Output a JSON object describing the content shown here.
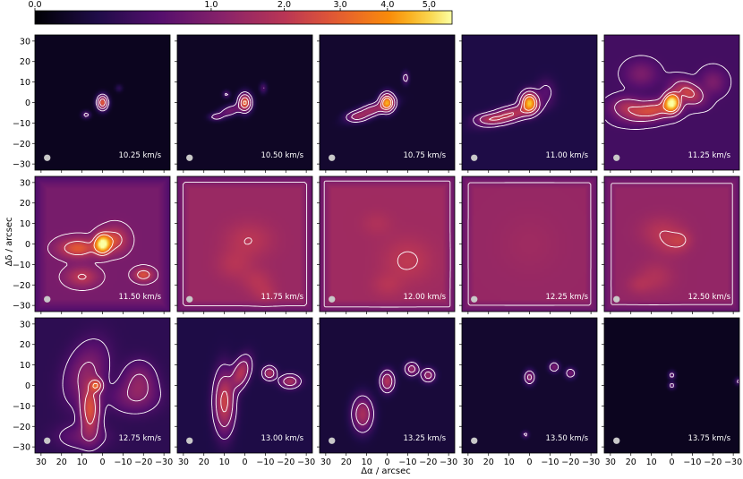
{
  "chart_data": {
    "type": "heatmap",
    "title": "",
    "xlabel": "Δα / arcsec",
    "ylabel": "Δδ / arcsec",
    "xlim": [
      33,
      -33
    ],
    "ylim": [
      -33,
      33
    ],
    "x_ticks": [
      30,
      20,
      10,
      0,
      -10,
      -20,
      -30
    ],
    "y_ticks": [
      30,
      20,
      10,
      0,
      -10,
      -20,
      -30
    ],
    "x_tick_labels": [
      "30",
      "20",
      "10",
      "0",
      "−10",
      "−20",
      "−30"
    ],
    "y_tick_labels": [
      "30",
      "20",
      "10",
      "0",
      "−10",
      "−20",
      "−30"
    ],
    "colormap": "inferno-like",
    "colorbar": {
      "position": "top",
      "scale": "square-root",
      "range": [
        0,
        5.6
      ],
      "ticks": [
        0.0,
        1.0,
        2.0,
        3.0,
        4.0,
        5.0
      ],
      "tick_labels": [
        "0.0",
        "1.0",
        "2.0",
        "3.0",
        "4.0",
        "5.0"
      ]
    },
    "beam": {
      "x": 27,
      "y": -27,
      "radius_arcsec": 1.6,
      "color": "#c8c8c8"
    },
    "grid": false,
    "channels": [
      {
        "label": "10.25 km/s",
        "velocity": 10.25,
        "background": 0.02,
        "blobs": [
          {
            "x": 0,
            "y": 0,
            "sx": 1.5,
            "sy": 2,
            "peak": 3.0,
            "rot": 0
          },
          {
            "x": 8,
            "y": -6,
            "sx": 1.2,
            "sy": 1,
            "peak": 0.6,
            "rot": 0
          },
          {
            "x": -8,
            "y": 7,
            "sx": 1,
            "sy": 1,
            "peak": 0.2,
            "rot": 0
          }
        ]
      },
      {
        "label": "10.50 km/s",
        "velocity": 10.5,
        "background": 0.03,
        "blobs": [
          {
            "x": 0,
            "y": 0,
            "sx": 1.8,
            "sy": 2.5,
            "peak": 3.2,
            "rot": 0
          },
          {
            "x": 7,
            "y": -4,
            "sx": 4,
            "sy": 1.5,
            "peak": 0.8,
            "rot": -20
          },
          {
            "x": 14,
            "y": -7,
            "sx": 2,
            "sy": 1,
            "peak": 0.6,
            "rot": 0
          },
          {
            "x": 9,
            "y": 4,
            "sx": 1,
            "sy": 1,
            "peak": 0.5,
            "rot": 0
          },
          {
            "x": -9,
            "y": 7,
            "sx": 1,
            "sy": 1.5,
            "peak": 0.4,
            "rot": 0
          }
        ]
      },
      {
        "label": "10.75 km/s",
        "velocity": 10.75,
        "background": 0.05,
        "blobs": [
          {
            "x": 0,
            "y": 0,
            "sx": 2,
            "sy": 2.5,
            "peak": 4.2,
            "rot": 0
          },
          {
            "x": 8,
            "y": -4,
            "sx": 6,
            "sy": 1.8,
            "peak": 1.5,
            "rot": -20
          },
          {
            "x": 15,
            "y": -7,
            "sx": 3,
            "sy": 1.5,
            "peak": 0.8,
            "rot": 0
          },
          {
            "x": -9,
            "y": 12,
            "sx": 1,
            "sy": 1.8,
            "peak": 0.6,
            "rot": 0
          }
        ]
      },
      {
        "label": "11.00 km/s",
        "velocity": 11.0,
        "background": 0.12,
        "blobs": [
          {
            "x": 0,
            "y": 0,
            "sx": 2.5,
            "sy": 3,
            "peak": 4.5,
            "rot": 0
          },
          {
            "x": 10,
            "y": -6,
            "sx": 8,
            "sy": 2.2,
            "peak": 2.0,
            "rot": -15
          },
          {
            "x": 20,
            "y": -8,
            "sx": 4,
            "sy": 1.5,
            "peak": 1.0,
            "rot": 0
          },
          {
            "x": -8,
            "y": 5,
            "sx": 3,
            "sy": 4,
            "peak": 0.4,
            "rot": 0
          }
        ]
      },
      {
        "label": "11.25 km/s",
        "velocity": 11.25,
        "background": 0.35,
        "blobs": [
          {
            "x": 0,
            "y": 0,
            "sx": 2.5,
            "sy": 3,
            "peak": 5.3,
            "rot": 0
          },
          {
            "x": -8,
            "y": 5,
            "sx": 5,
            "sy": 3,
            "peak": 2.0,
            "rot": 30
          },
          {
            "x": 10,
            "y": -4,
            "sx": 8,
            "sy": 3,
            "peak": 2.2,
            "rot": -10
          },
          {
            "x": 22,
            "y": -2,
            "sx": 5,
            "sy": 3,
            "peak": 1.2,
            "rot": 0
          },
          {
            "x": 15,
            "y": 14,
            "sx": 5,
            "sy": 4,
            "peak": 0.6,
            "rot": 0
          },
          {
            "x": -20,
            "y": 10,
            "sx": 4,
            "sy": 4,
            "peak": 0.6,
            "rot": 0
          }
        ]
      },
      {
        "label": "11.50 km/s",
        "velocity": 11.5,
        "background": 0.9,
        "blobs": [
          {
            "x": 0,
            "y": 0,
            "sx": 2.5,
            "sy": 3,
            "peak": 5.0,
            "rot": 0
          },
          {
            "x": 12,
            "y": -2,
            "sx": 6,
            "sy": 3,
            "peak": 2.0,
            "rot": 0
          },
          {
            "x": -6,
            "y": 2,
            "sx": 4,
            "sy": 4,
            "peak": 1.6,
            "rot": 0
          },
          {
            "x": -20,
            "y": -15,
            "sx": 3,
            "sy": 2,
            "peak": 1.8,
            "rot": 0
          },
          {
            "x": 10,
            "y": -16,
            "sx": 5,
            "sy": 3,
            "peak": 1.2,
            "rot": 0
          }
        ]
      },
      {
        "label": "11.75 km/s",
        "velocity": 11.75,
        "background": 1.4,
        "blobs": [
          {
            "x": -2,
            "y": 2,
            "sx": 8,
            "sy": 6,
            "peak": 0.6,
            "rot": 0
          },
          {
            "x": 5,
            "y": -10,
            "sx": 6,
            "sy": 5,
            "peak": 0.5,
            "rot": 0
          },
          {
            "x": -6,
            "y": -18,
            "sx": 5,
            "sy": 4,
            "peak": 0.5,
            "rot": 0
          },
          {
            "x": -10,
            "y": -24,
            "sx": 4,
            "sy": 3,
            "peak": 0.4,
            "rot": 0
          }
        ]
      },
      {
        "label": "12.00 km/s",
        "velocity": 12.0,
        "background": 1.5,
        "blobs": [
          {
            "x": -10,
            "y": -8,
            "sx": 8,
            "sy": 7,
            "peak": 0.6,
            "rot": 0
          },
          {
            "x": 0,
            "y": -20,
            "sx": 5,
            "sy": 4,
            "peak": 0.4,
            "rot": 0
          },
          {
            "x": 5,
            "y": 10,
            "sx": 5,
            "sy": 4,
            "peak": 0.3,
            "rot": 0
          }
        ]
      },
      {
        "label": "12.25 km/s",
        "velocity": 12.25,
        "background": 1.35,
        "blobs": [
          {
            "x": 0,
            "y": 0,
            "sx": 10,
            "sy": 10,
            "peak": 0.15,
            "rot": 0
          }
        ]
      },
      {
        "label": "12.50 km/s",
        "velocity": 12.5,
        "background": 1.3,
        "blobs": [
          {
            "x": 5,
            "y": 6,
            "sx": 7,
            "sy": 5,
            "peak": 0.6,
            "rot": 0
          },
          {
            "x": 0,
            "y": 0,
            "sx": 5,
            "sy": 4,
            "peak": 0.5,
            "rot": 0
          },
          {
            "x": 8,
            "y": -16,
            "sx": 6,
            "sy": 5,
            "peak": 0.5,
            "rot": 0
          },
          {
            "x": 16,
            "y": -20,
            "sx": 4,
            "sy": 3,
            "peak": 0.4,
            "rot": 0
          },
          {
            "x": -5,
            "y": 2,
            "sx": 3,
            "sy": 3,
            "peak": 0.5,
            "rot": 0
          }
        ]
      },
      {
        "label": "12.75 km/s",
        "velocity": 12.75,
        "background": 0.2,
        "blobs": [
          {
            "x": 6,
            "y": -12,
            "sx": 3,
            "sy": 8,
            "peak": 2.4,
            "rot": 0
          },
          {
            "x": 3,
            "y": 0,
            "sx": 2,
            "sy": 2,
            "peak": 2.2,
            "rot": 0
          },
          {
            "x": 8,
            "y": 6,
            "sx": 6,
            "sy": 10,
            "peak": 0.9,
            "rot": 20
          },
          {
            "x": -18,
            "y": 2,
            "sx": 5,
            "sy": 6,
            "peak": 0.9,
            "rot": 0
          },
          {
            "x": -15,
            "y": -6,
            "sx": 8,
            "sy": 5,
            "peak": 0.6,
            "rot": 0
          },
          {
            "x": 10,
            "y": -25,
            "sx": 8,
            "sy": 4,
            "peak": 0.5,
            "rot": 0
          }
        ]
      },
      {
        "label": "13.00 km/s",
        "velocity": 13.0,
        "background": 0.12,
        "blobs": [
          {
            "x": 10,
            "y": -8,
            "sx": 3,
            "sy": 9,
            "peak": 2.2,
            "rot": 0
          },
          {
            "x": 2,
            "y": 6,
            "sx": 2.5,
            "sy": 5,
            "peak": 1.8,
            "rot": 20
          },
          {
            "x": -12,
            "y": 6,
            "sx": 2,
            "sy": 2,
            "peak": 1.6,
            "rot": 0
          },
          {
            "x": -22,
            "y": 2,
            "sx": 3,
            "sy": 2,
            "peak": 1.5,
            "rot": 0
          }
        ]
      },
      {
        "label": "13.25 km/s",
        "velocity": 13.25,
        "background": 0.08,
        "blobs": [
          {
            "x": 0,
            "y": 2,
            "sx": 2,
            "sy": 3,
            "peak": 1.8,
            "rot": 0
          },
          {
            "x": 12,
            "y": -14,
            "sx": 3,
            "sy": 5,
            "peak": 1.6,
            "rot": 0
          },
          {
            "x": -12,
            "y": 8,
            "sx": 2,
            "sy": 2,
            "peak": 1.3,
            "rot": 0
          },
          {
            "x": -20,
            "y": 5,
            "sx": 2,
            "sy": 2,
            "peak": 1.3,
            "rot": 0
          }
        ]
      },
      {
        "label": "13.50 km/s",
        "velocity": 13.5,
        "background": 0.05,
        "blobs": [
          {
            "x": 0,
            "y": 4,
            "sx": 1.5,
            "sy": 2,
            "peak": 1.2,
            "rot": 0
          },
          {
            "x": -12,
            "y": 9,
            "sx": 1.5,
            "sy": 1.5,
            "peak": 0.9,
            "rot": 0
          },
          {
            "x": -20,
            "y": 6,
            "sx": 1.5,
            "sy": 1.5,
            "peak": 0.8,
            "rot": 0
          },
          {
            "x": 2,
            "y": -24,
            "sx": 1,
            "sy": 1,
            "peak": 0.5,
            "rot": 0
          }
        ]
      },
      {
        "label": "13.75 km/s",
        "velocity": 13.75,
        "background": 0.02,
        "blobs": [
          {
            "x": 0,
            "y": 5,
            "sx": 1,
            "sy": 1.2,
            "peak": 0.6,
            "rot": 0
          },
          {
            "x": 0,
            "y": 0,
            "sx": 1,
            "sy": 1,
            "peak": 0.6,
            "rot": 0
          },
          {
            "x": -33,
            "y": 2,
            "sx": 1.2,
            "sy": 1,
            "peak": 0.6,
            "rot": 0
          }
        ]
      }
    ]
  }
}
